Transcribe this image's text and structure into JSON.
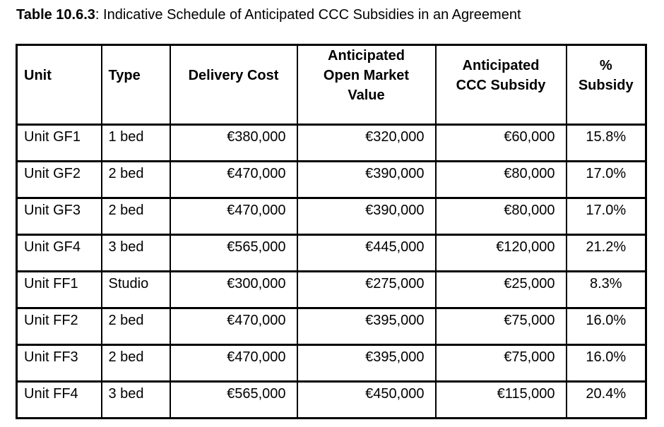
{
  "colors": {
    "text": "#000000",
    "border": "#000000",
    "background": "#ffffff"
  },
  "title": {
    "label": "Table 10.6.3",
    "text": ": Indicative Schedule of Anticipated CCC Subsidies in an Agreement"
  },
  "table": {
    "columns": [
      {
        "key": "unit",
        "label": "Unit"
      },
      {
        "key": "type",
        "label": "Type"
      },
      {
        "key": "delivery_cost",
        "label": "Delivery Cost"
      },
      {
        "key": "open_market_value",
        "label": "Anticipated\nOpen Market\nValue"
      },
      {
        "key": "ccc_subsidy",
        "label": "Anticipated\nCCC Subsidy"
      },
      {
        "key": "pct_subsidy",
        "label": "%\nSubsidy"
      }
    ],
    "rows": [
      [
        "Unit GF1",
        "1 bed",
        "€380,000",
        "€320,000",
        "€60,000",
        "15.8%"
      ],
      [
        "Unit GF2",
        "2 bed",
        "€470,000",
        "€390,000",
        "€80,000",
        "17.0%"
      ],
      [
        "Unit GF3",
        "2 bed",
        "€470,000",
        "€390,000",
        "€80,000",
        "17.0%"
      ],
      [
        "Unit GF4",
        "3 bed",
        "€565,000",
        "€445,000",
        "€120,000",
        "21.2%"
      ],
      [
        "Unit FF1",
        "Studio",
        "€300,000",
        "€275,000",
        "€25,000",
        "8.3%"
      ],
      [
        "Unit FF2",
        "2 bed",
        "€470,000",
        "€395,000",
        "€75,000",
        "16.0%"
      ],
      [
        "Unit FF3",
        "2 bed",
        "€470,000",
        "€395,000",
        "€75,000",
        "16.0%"
      ],
      [
        "Unit FF4",
        "3 bed",
        "€565,000",
        "€450,000",
        "€115,000",
        "20.4%"
      ]
    ]
  }
}
